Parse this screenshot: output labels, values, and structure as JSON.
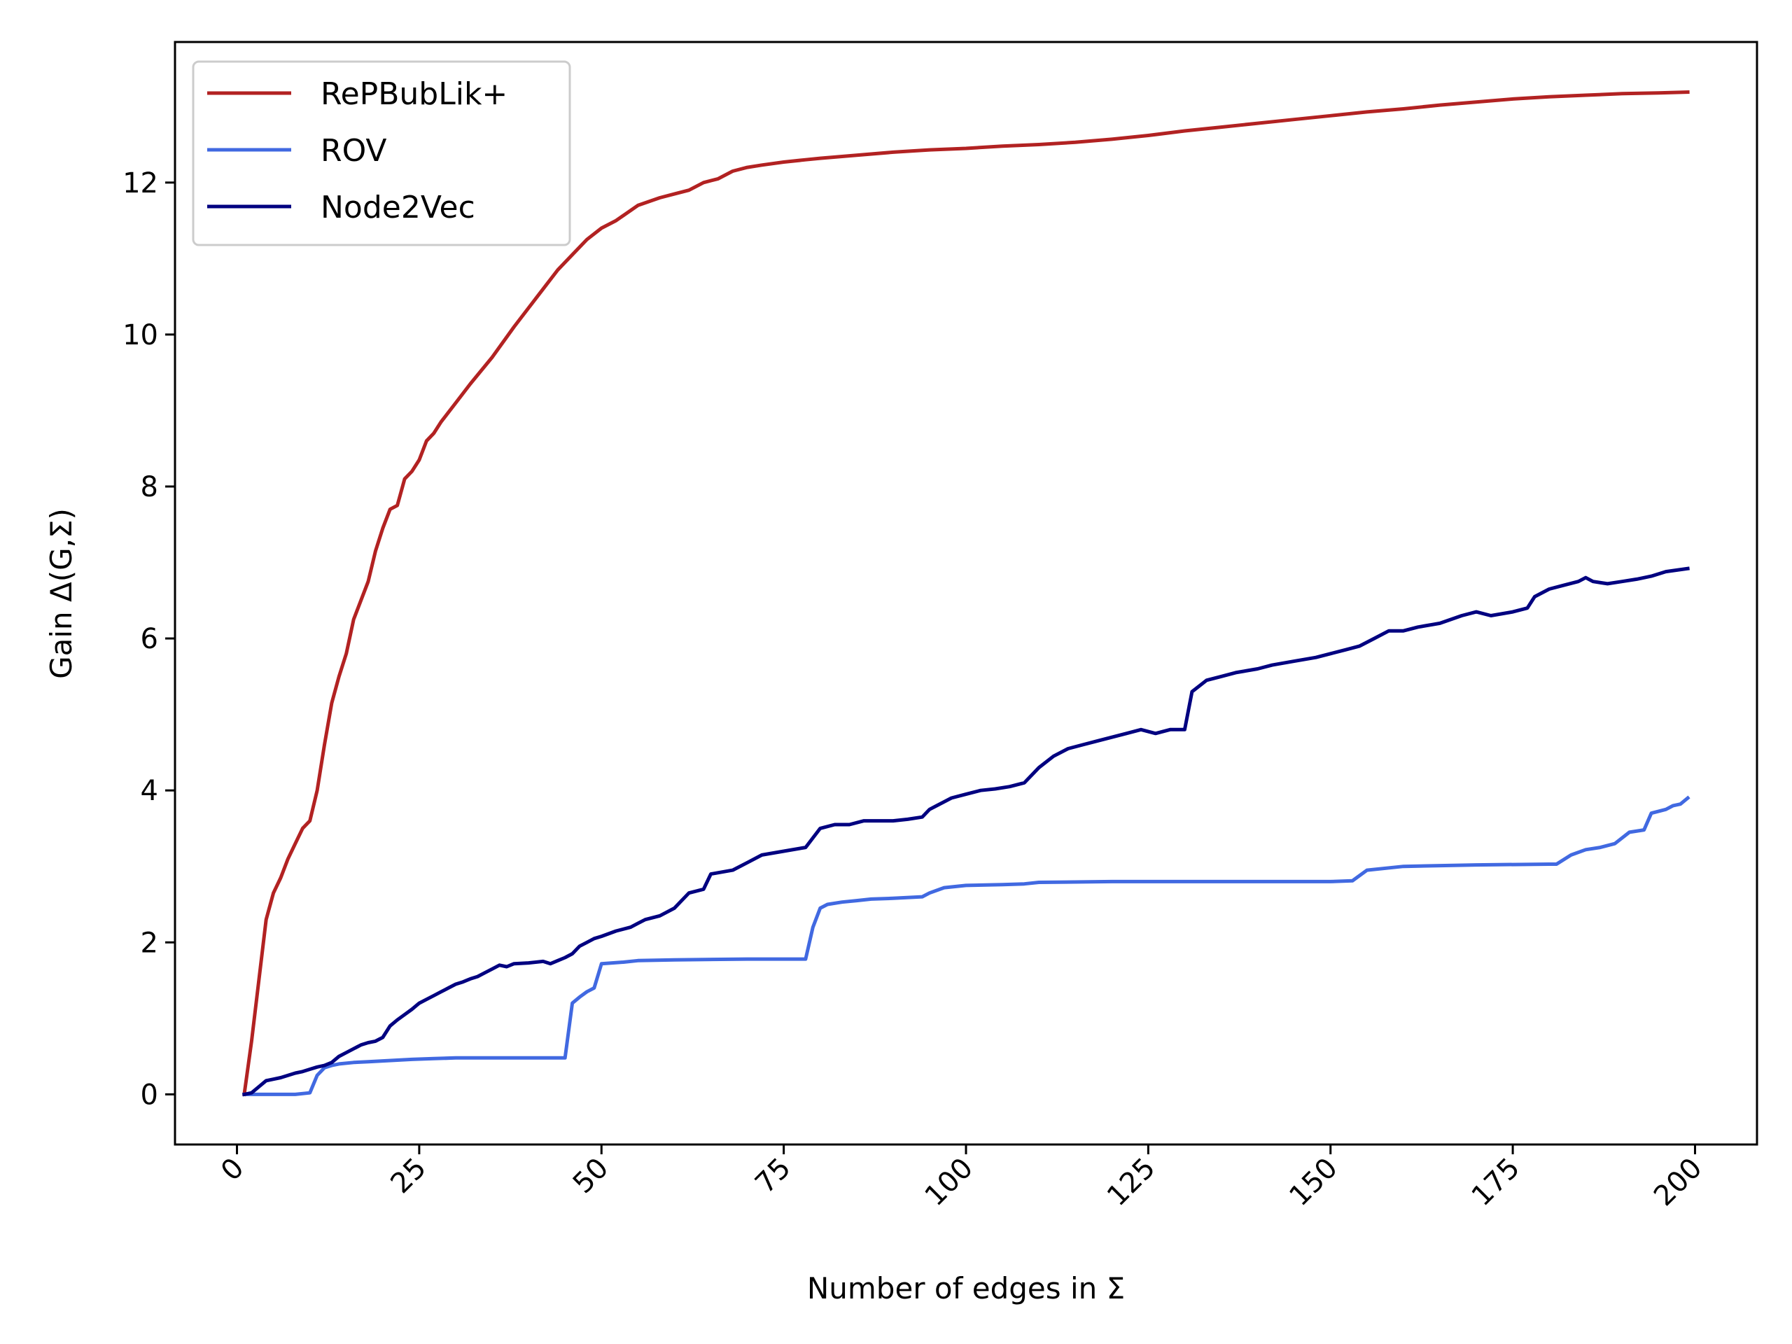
{
  "chart_data": {
    "type": "line",
    "title": "",
    "xlabel": "Number of edges in Σ",
    "ylabel": "Gain Δ(G,Σ)",
    "xlim": [
      -8.5,
      208.5
    ],
    "ylim": [
      -0.66,
      13.85
    ],
    "xticks": [
      0,
      25,
      50,
      75,
      100,
      125,
      150,
      175,
      200
    ],
    "xtick_labels": [
      "0",
      "25",
      "50",
      "75",
      "100",
      "125",
      "150",
      "175",
      "200"
    ],
    "yticks": [
      0,
      2,
      4,
      6,
      8,
      10,
      12
    ],
    "ytick_labels": [
      "0",
      "2",
      "4",
      "6",
      "8",
      "10",
      "12"
    ],
    "xtick_rotation": 45,
    "grid": false,
    "legend_position": "top-left",
    "series": [
      {
        "name": "RePBubLik+",
        "color": "#b22222",
        "x": [
          1,
          2,
          3,
          4,
          5,
          6,
          7,
          8,
          9,
          10,
          11,
          12,
          13,
          14,
          15,
          16,
          17,
          18,
          19,
          20,
          21,
          22,
          23,
          24,
          25,
          26,
          27,
          28,
          30,
          32,
          35,
          38,
          40,
          42,
          44,
          46,
          48,
          50,
          52,
          55,
          58,
          60,
          62,
          64,
          66,
          68,
          70,
          72,
          75,
          78,
          80,
          85,
          90,
          95,
          100,
          105,
          110,
          115,
          120,
          125,
          130,
          135,
          140,
          145,
          150,
          155,
          160,
          165,
          170,
          175,
          180,
          185,
          190,
          195,
          199
        ],
        "y": [
          0.0,
          0.7,
          1.5,
          2.3,
          2.65,
          2.85,
          3.1,
          3.3,
          3.5,
          3.6,
          4.0,
          4.6,
          5.15,
          5.5,
          5.8,
          6.25,
          6.5,
          6.75,
          7.15,
          7.45,
          7.7,
          7.75,
          8.1,
          8.2,
          8.35,
          8.6,
          8.7,
          8.85,
          9.1,
          9.35,
          9.7,
          10.1,
          10.35,
          10.6,
          10.85,
          11.05,
          11.25,
          11.4,
          11.5,
          11.7,
          11.8,
          11.85,
          11.9,
          12.0,
          12.05,
          12.15,
          12.2,
          12.23,
          12.27,
          12.3,
          12.32,
          12.36,
          12.4,
          12.43,
          12.45,
          12.48,
          12.5,
          12.53,
          12.57,
          12.62,
          12.68,
          12.73,
          12.78,
          12.83,
          12.88,
          12.93,
          12.97,
          13.02,
          13.06,
          13.1,
          13.13,
          13.15,
          13.17,
          13.18,
          13.19
        ]
      },
      {
        "name": "ROV",
        "color": "#4169e1",
        "x": [
          1,
          5,
          8,
          10,
          11,
          12,
          13,
          14,
          16,
          18,
          20,
          22,
          24,
          27,
          30,
          35,
          40,
          44,
          45,
          46,
          47,
          48,
          49,
          50,
          53,
          55,
          60,
          70,
          78,
          79,
          80,
          81,
          83,
          85,
          87,
          90,
          94,
          95,
          97,
          100,
          105,
          108,
          110,
          120,
          130,
          140,
          150,
          153,
          155,
          160,
          170,
          180,
          181,
          183,
          185,
          187,
          189,
          191,
          193,
          194,
          196,
          197,
          198,
          199
        ],
        "y": [
          0.0,
          0.0,
          0.0,
          0.02,
          0.25,
          0.35,
          0.38,
          0.4,
          0.42,
          0.43,
          0.44,
          0.45,
          0.46,
          0.47,
          0.48,
          0.48,
          0.48,
          0.48,
          0.48,
          1.2,
          1.28,
          1.35,
          1.4,
          1.72,
          1.74,
          1.76,
          1.77,
          1.78,
          1.78,
          2.2,
          2.45,
          2.5,
          2.53,
          2.55,
          2.57,
          2.58,
          2.6,
          2.65,
          2.72,
          2.75,
          2.76,
          2.77,
          2.79,
          2.8,
          2.8,
          2.8,
          2.8,
          2.81,
          2.95,
          3.0,
          3.02,
          3.03,
          3.03,
          3.15,
          3.22,
          3.25,
          3.3,
          3.45,
          3.48,
          3.7,
          3.75,
          3.8,
          3.82,
          3.9
        ]
      },
      {
        "name": "Node2Vec",
        "color": "#000080",
        "x": [
          1,
          2,
          3,
          4,
          5,
          6,
          7,
          8,
          9,
          10,
          11,
          12,
          13,
          14,
          15,
          16,
          17,
          18,
          19,
          20,
          21,
          22,
          23,
          24,
          25,
          26,
          27,
          28,
          29,
          30,
          31,
          32,
          33,
          34,
          35,
          36,
          37,
          38,
          40,
          42,
          43,
          44,
          45,
          46,
          47,
          48,
          49,
          50,
          52,
          54,
          55,
          56,
          58,
          60,
          62,
          64,
          65,
          68,
          70,
          72,
          75,
          78,
          80,
          82,
          84,
          86,
          88,
          90,
          92,
          94,
          95,
          96,
          98,
          100,
          102,
          104,
          106,
          108,
          110,
          112,
          114,
          116,
          118,
          120,
          122,
          124,
          126,
          128,
          130,
          131,
          133,
          135,
          137,
          140,
          142,
          145,
          148,
          150,
          152,
          154,
          156,
          158,
          160,
          162,
          165,
          168,
          170,
          172,
          175,
          177,
          178,
          180,
          182,
          184,
          185,
          186,
          188,
          190,
          192,
          194,
          196,
          199
        ],
        "y": [
          0.0,
          0.02,
          0.1,
          0.18,
          0.2,
          0.22,
          0.25,
          0.28,
          0.3,
          0.33,
          0.36,
          0.38,
          0.42,
          0.5,
          0.55,
          0.6,
          0.65,
          0.68,
          0.7,
          0.75,
          0.9,
          0.98,
          1.05,
          1.12,
          1.2,
          1.25,
          1.3,
          1.35,
          1.4,
          1.45,
          1.48,
          1.52,
          1.55,
          1.6,
          1.65,
          1.7,
          1.68,
          1.72,
          1.73,
          1.75,
          1.72,
          1.76,
          1.8,
          1.85,
          1.95,
          2.0,
          2.05,
          2.08,
          2.15,
          2.2,
          2.25,
          2.3,
          2.35,
          2.45,
          2.65,
          2.7,
          2.9,
          2.95,
          3.05,
          3.15,
          3.2,
          3.25,
          3.5,
          3.55,
          3.55,
          3.6,
          3.6,
          3.6,
          3.62,
          3.65,
          3.75,
          3.8,
          3.9,
          3.95,
          4.0,
          4.02,
          4.05,
          4.1,
          4.3,
          4.45,
          4.55,
          4.6,
          4.65,
          4.7,
          4.75,
          4.8,
          4.75,
          4.8,
          4.8,
          5.3,
          5.45,
          5.5,
          5.55,
          5.6,
          5.65,
          5.7,
          5.75,
          5.8,
          5.85,
          5.9,
          6.0,
          6.1,
          6.1,
          6.15,
          6.2,
          6.3,
          6.35,
          6.3,
          6.35,
          6.4,
          6.55,
          6.65,
          6.7,
          6.75,
          6.8,
          6.75,
          6.72,
          6.75,
          6.78,
          6.82,
          6.88,
          6.92
        ]
      }
    ]
  }
}
